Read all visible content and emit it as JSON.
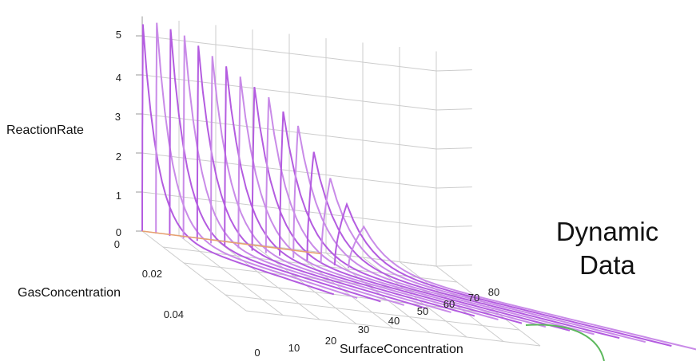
{
  "chart_data": {
    "type": "line",
    "projection": "3d",
    "title": "",
    "xlabel": "SurfaceConcentration",
    "ylabel": "GasConcentration",
    "zlabel": "ReactionRate",
    "x_ticks": [
      "0",
      "10",
      "20",
      "30",
      "40",
      "50",
      "60",
      "70",
      "80"
    ],
    "y_ticks": [
      "0.02",
      "0.04"
    ],
    "y_zero_label": "0",
    "z_ticks": [
      "0",
      "1",
      "2",
      "3",
      "4",
      "5"
    ],
    "xlim": [
      0,
      80
    ],
    "ylim": [
      0,
      0.05
    ],
    "zlim": [
      0,
      5.5
    ],
    "grid": true,
    "legend": "none",
    "colors": {
      "series": "#b45ce0",
      "series_alt": "#c98be8",
      "baseline": "#e8a070",
      "grid": "#cccccc"
    },
    "series": [
      {
        "peak": 5.3,
        "spike_at_surface": 0.2,
        "spike_width": 0.6
      },
      {
        "peak": 5.4,
        "spike_at_surface": 0.2,
        "spike_width": 0.7
      },
      {
        "peak": 5.3,
        "spike_at_surface": 0.3,
        "spike_width": 0.8
      },
      {
        "peak": 5.2,
        "spike_at_surface": 0.3,
        "spike_width": 0.9
      },
      {
        "peak": 5.0,
        "spike_at_surface": 0.4,
        "spike_width": 1.0
      },
      {
        "peak": 4.8,
        "spike_at_surface": 0.5,
        "spike_width": 1.2
      },
      {
        "peak": 4.6,
        "spike_at_surface": 0.6,
        "spike_width": 1.4
      },
      {
        "peak": 4.4,
        "spike_at_surface": 0.8,
        "spike_width": 1.7
      },
      {
        "peak": 4.2,
        "spike_at_surface": 1.0,
        "spike_width": 2.0
      },
      {
        "peak": 4.0,
        "spike_at_surface": 1.3,
        "spike_width": 2.5
      },
      {
        "peak": 3.7,
        "spike_at_surface": 1.7,
        "spike_width": 3.2
      },
      {
        "peak": 3.4,
        "spike_at_surface": 2.2,
        "spike_width": 4.2
      },
      {
        "peak": 2.8,
        "spike_at_surface": 3.0,
        "spike_width": 6.0
      },
      {
        "peak": 2.2,
        "spike_at_surface": 4.2,
        "spike_width": 8.5
      },
      {
        "peak": 1.6,
        "spike_at_surface": 6.0,
        "spike_width": 11.0
      },
      {
        "peak": 1.1,
        "spike_at_surface": 8.5,
        "spike_width": 14.0
      }
    ]
  },
  "side_label": {
    "line1": "Dynamic",
    "line2": "Data"
  },
  "accent_curve_color": "#5cb85c"
}
